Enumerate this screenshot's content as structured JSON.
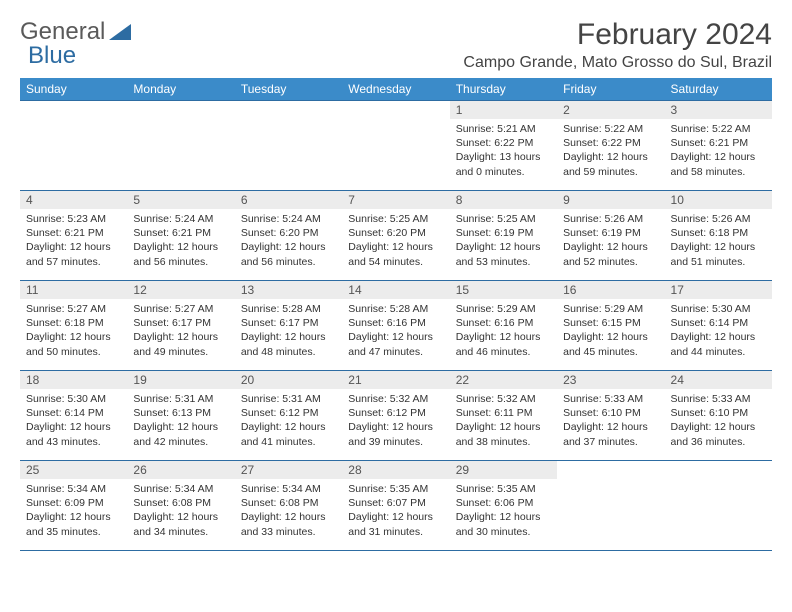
{
  "logo": {
    "text1": "General",
    "text2": "Blue"
  },
  "title": "February 2024",
  "location": "Campo Grande, Mato Grosso do Sul, Brazil",
  "colors": {
    "header_bg": "#3b8bc9",
    "border": "#2d6ca2",
    "daynum_bg": "#ececec",
    "text": "#333333"
  },
  "weekdays": [
    "Sunday",
    "Monday",
    "Tuesday",
    "Wednesday",
    "Thursday",
    "Friday",
    "Saturday"
  ],
  "weeks": [
    [
      {
        "empty": true
      },
      {
        "empty": true
      },
      {
        "empty": true
      },
      {
        "empty": true
      },
      {
        "num": "1",
        "sunrise": "Sunrise: 5:21 AM",
        "sunset": "Sunset: 6:22 PM",
        "daylight": "Daylight: 13 hours and 0 minutes."
      },
      {
        "num": "2",
        "sunrise": "Sunrise: 5:22 AM",
        "sunset": "Sunset: 6:22 PM",
        "daylight": "Daylight: 12 hours and 59 minutes."
      },
      {
        "num": "3",
        "sunrise": "Sunrise: 5:22 AM",
        "sunset": "Sunset: 6:21 PM",
        "daylight": "Daylight: 12 hours and 58 minutes."
      }
    ],
    [
      {
        "num": "4",
        "sunrise": "Sunrise: 5:23 AM",
        "sunset": "Sunset: 6:21 PM",
        "daylight": "Daylight: 12 hours and 57 minutes."
      },
      {
        "num": "5",
        "sunrise": "Sunrise: 5:24 AM",
        "sunset": "Sunset: 6:21 PM",
        "daylight": "Daylight: 12 hours and 56 minutes."
      },
      {
        "num": "6",
        "sunrise": "Sunrise: 5:24 AM",
        "sunset": "Sunset: 6:20 PM",
        "daylight": "Daylight: 12 hours and 56 minutes."
      },
      {
        "num": "7",
        "sunrise": "Sunrise: 5:25 AM",
        "sunset": "Sunset: 6:20 PM",
        "daylight": "Daylight: 12 hours and 54 minutes."
      },
      {
        "num": "8",
        "sunrise": "Sunrise: 5:25 AM",
        "sunset": "Sunset: 6:19 PM",
        "daylight": "Daylight: 12 hours and 53 minutes."
      },
      {
        "num": "9",
        "sunrise": "Sunrise: 5:26 AM",
        "sunset": "Sunset: 6:19 PM",
        "daylight": "Daylight: 12 hours and 52 minutes."
      },
      {
        "num": "10",
        "sunrise": "Sunrise: 5:26 AM",
        "sunset": "Sunset: 6:18 PM",
        "daylight": "Daylight: 12 hours and 51 minutes."
      }
    ],
    [
      {
        "num": "11",
        "sunrise": "Sunrise: 5:27 AM",
        "sunset": "Sunset: 6:18 PM",
        "daylight": "Daylight: 12 hours and 50 minutes."
      },
      {
        "num": "12",
        "sunrise": "Sunrise: 5:27 AM",
        "sunset": "Sunset: 6:17 PM",
        "daylight": "Daylight: 12 hours and 49 minutes."
      },
      {
        "num": "13",
        "sunrise": "Sunrise: 5:28 AM",
        "sunset": "Sunset: 6:17 PM",
        "daylight": "Daylight: 12 hours and 48 minutes."
      },
      {
        "num": "14",
        "sunrise": "Sunrise: 5:28 AM",
        "sunset": "Sunset: 6:16 PM",
        "daylight": "Daylight: 12 hours and 47 minutes."
      },
      {
        "num": "15",
        "sunrise": "Sunrise: 5:29 AM",
        "sunset": "Sunset: 6:16 PM",
        "daylight": "Daylight: 12 hours and 46 minutes."
      },
      {
        "num": "16",
        "sunrise": "Sunrise: 5:29 AM",
        "sunset": "Sunset: 6:15 PM",
        "daylight": "Daylight: 12 hours and 45 minutes."
      },
      {
        "num": "17",
        "sunrise": "Sunrise: 5:30 AM",
        "sunset": "Sunset: 6:14 PM",
        "daylight": "Daylight: 12 hours and 44 minutes."
      }
    ],
    [
      {
        "num": "18",
        "sunrise": "Sunrise: 5:30 AM",
        "sunset": "Sunset: 6:14 PM",
        "daylight": "Daylight: 12 hours and 43 minutes."
      },
      {
        "num": "19",
        "sunrise": "Sunrise: 5:31 AM",
        "sunset": "Sunset: 6:13 PM",
        "daylight": "Daylight: 12 hours and 42 minutes."
      },
      {
        "num": "20",
        "sunrise": "Sunrise: 5:31 AM",
        "sunset": "Sunset: 6:12 PM",
        "daylight": "Daylight: 12 hours and 41 minutes."
      },
      {
        "num": "21",
        "sunrise": "Sunrise: 5:32 AM",
        "sunset": "Sunset: 6:12 PM",
        "daylight": "Daylight: 12 hours and 39 minutes."
      },
      {
        "num": "22",
        "sunrise": "Sunrise: 5:32 AM",
        "sunset": "Sunset: 6:11 PM",
        "daylight": "Daylight: 12 hours and 38 minutes."
      },
      {
        "num": "23",
        "sunrise": "Sunrise: 5:33 AM",
        "sunset": "Sunset: 6:10 PM",
        "daylight": "Daylight: 12 hours and 37 minutes."
      },
      {
        "num": "24",
        "sunrise": "Sunrise: 5:33 AM",
        "sunset": "Sunset: 6:10 PM",
        "daylight": "Daylight: 12 hours and 36 minutes."
      }
    ],
    [
      {
        "num": "25",
        "sunrise": "Sunrise: 5:34 AM",
        "sunset": "Sunset: 6:09 PM",
        "daylight": "Daylight: 12 hours and 35 minutes."
      },
      {
        "num": "26",
        "sunrise": "Sunrise: 5:34 AM",
        "sunset": "Sunset: 6:08 PM",
        "daylight": "Daylight: 12 hours and 34 minutes."
      },
      {
        "num": "27",
        "sunrise": "Sunrise: 5:34 AM",
        "sunset": "Sunset: 6:08 PM",
        "daylight": "Daylight: 12 hours and 33 minutes."
      },
      {
        "num": "28",
        "sunrise": "Sunrise: 5:35 AM",
        "sunset": "Sunset: 6:07 PM",
        "daylight": "Daylight: 12 hours and 31 minutes."
      },
      {
        "num": "29",
        "sunrise": "Sunrise: 5:35 AM",
        "sunset": "Sunset: 6:06 PM",
        "daylight": "Daylight: 12 hours and 30 minutes."
      },
      {
        "empty": true
      },
      {
        "empty": true
      }
    ]
  ]
}
